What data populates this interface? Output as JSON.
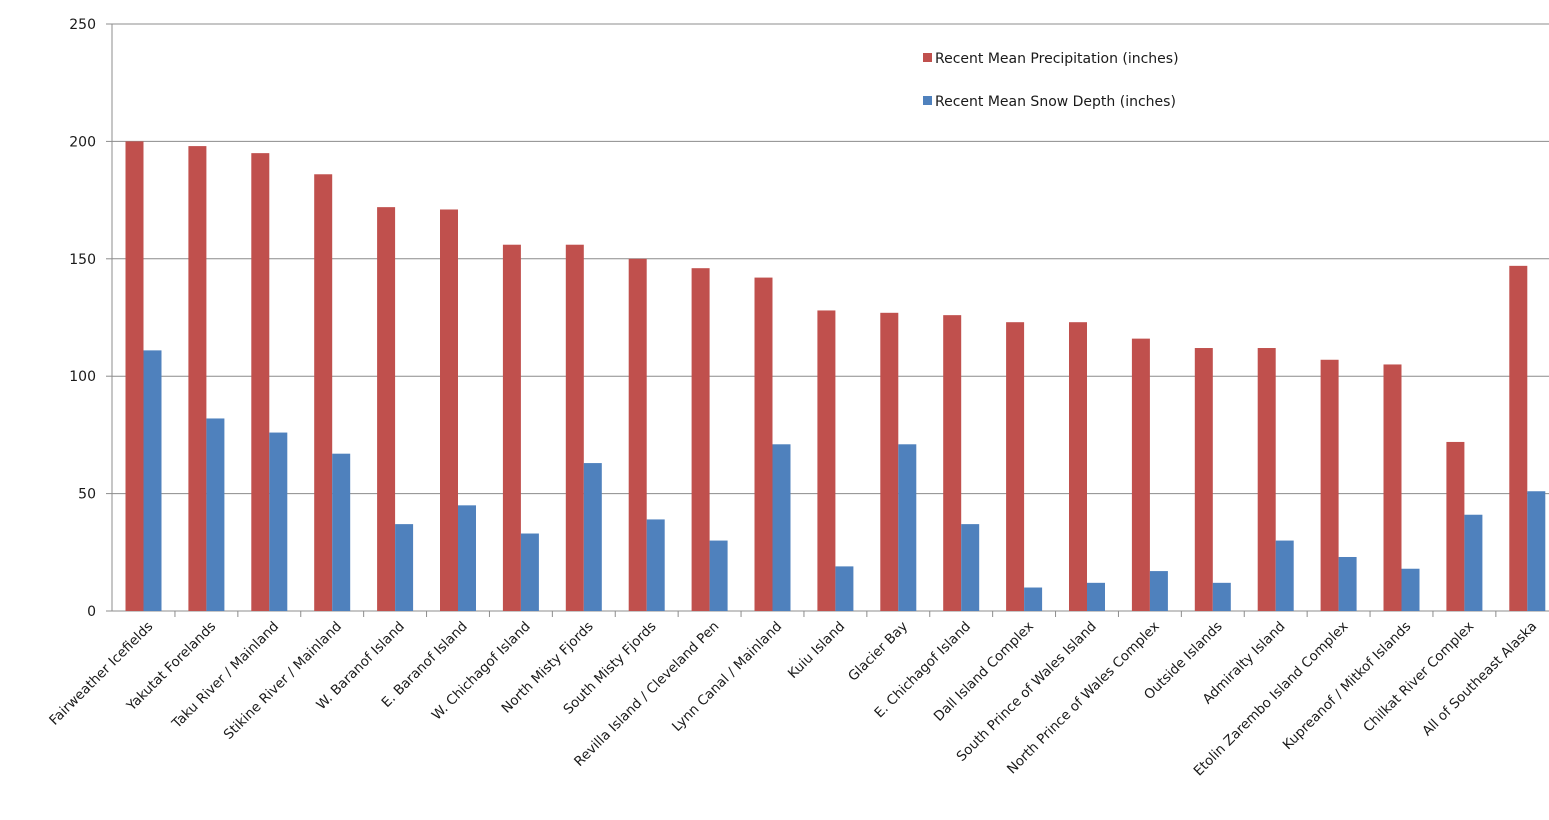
{
  "chart_data": {
    "type": "bar",
    "title": "",
    "xlabel": "",
    "ylabel": "",
    "ylim": [
      0,
      250
    ],
    "yticks": [
      0,
      50,
      100,
      150,
      200,
      250
    ],
    "grid": true,
    "legend_position": "top-right",
    "categories": [
      "Fairweather Icefields",
      "Yakutat Forelands",
      "Taku River / Mainland",
      "Stikine River / Mainland",
      "W. Baranof Island",
      "E. Baranof Island",
      "W. Chichagof Island",
      "North Misty Fjords",
      "South Misty Fjords",
      "Revilla Island / Cleveland Pen",
      "Lynn Canal / Mainland",
      "Kuiu Island",
      "Glacier Bay",
      "E. Chichagof Island",
      "Dall Island Complex",
      "South Prince of Wales Island",
      "North Prince of Wales Complex",
      "Outside Islands",
      "Admiralty Island",
      "Etolin Zarembo Island Complex",
      "Kupreanof / Mitkof Islands",
      "Chilkat River Complex",
      "All of Southeast Alaska"
    ],
    "series": [
      {
        "name": "Recent Mean Precipitation (inches)",
        "color": "#c0504d",
        "values": [
          200,
          198,
          195,
          186,
          172,
          171,
          156,
          156,
          150,
          146,
          142,
          128,
          127,
          126,
          123,
          123,
          116,
          112,
          112,
          107,
          105,
          72,
          147
        ]
      },
      {
        "name": "Recent Mean Snow Depth (inches)",
        "color": "#4f81bd",
        "values": [
          111,
          82,
          76,
          67,
          37,
          45,
          33,
          63,
          39,
          30,
          71,
          19,
          71,
          37,
          10,
          12,
          17,
          12,
          30,
          23,
          18,
          41,
          51
        ]
      }
    ]
  }
}
